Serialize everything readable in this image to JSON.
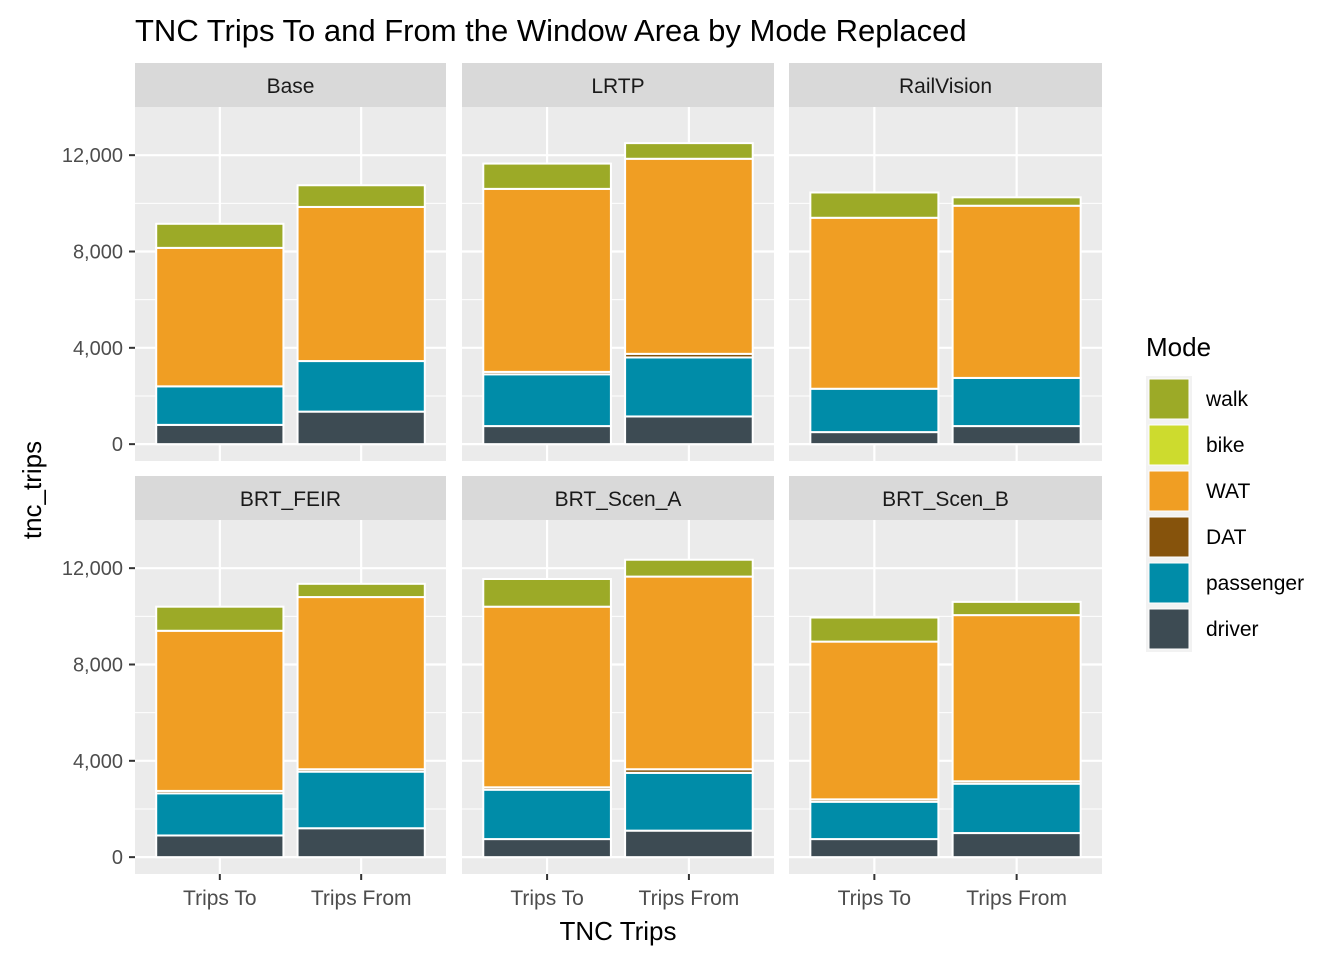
{
  "chart_data": {
    "type": "bar",
    "stacked": true,
    "faceted": true,
    "title": "TNC Trips To and From the Window Area by Mode Replaced",
    "xlabel": "TNC Trips",
    "ylabel": "tnc_trips",
    "ylim": [
      -700,
      14000
    ],
    "yticks": [
      0,
      4000,
      8000,
      12000
    ],
    "ytick_labels": [
      "0",
      "4,000",
      "8,000",
      "12,000"
    ],
    "grid": true,
    "categories": [
      "Trips To",
      "Trips From"
    ],
    "legend": {
      "title": "Mode",
      "placement": "right",
      "entries": [
        {
          "name": "walk",
          "color": "#9CAA27"
        },
        {
          "name": "bike",
          "color": "#CDDB2E"
        },
        {
          "name": "WAT",
          "color": "#F09E23"
        },
        {
          "name": "DAT",
          "color": "#86530C"
        },
        {
          "name": "passenger",
          "color": "#008CA8"
        },
        {
          "name": "driver",
          "color": "#3D4B53"
        }
      ]
    },
    "stack_order": [
      "driver",
      "passenger",
      "DAT",
      "WAT",
      "bike",
      "walk"
    ],
    "panels": [
      {
        "name": "Base",
        "bars": [
          {
            "category": "Trips To",
            "values": {
              "driver": 800,
              "passenger": 1600,
              "DAT": 0,
              "WAT": 5750,
              "bike": 0,
              "walk": 1000
            }
          },
          {
            "category": "Trips From",
            "values": {
              "driver": 1350,
              "passenger": 2100,
              "DAT": 0,
              "WAT": 6400,
              "bike": 0,
              "walk": 900
            }
          }
        ]
      },
      {
        "name": "LRTP",
        "bars": [
          {
            "category": "Trips To",
            "values": {
              "driver": 750,
              "passenger": 2150,
              "DAT": 100,
              "WAT": 7600,
              "bike": 0,
              "walk": 1050
            }
          },
          {
            "category": "Trips From",
            "values": {
              "driver": 1150,
              "passenger": 2450,
              "DAT": 150,
              "WAT": 8100,
              "bike": 0,
              "walk": 650
            }
          }
        ]
      },
      {
        "name": "RailVision",
        "bars": [
          {
            "category": "Trips To",
            "values": {
              "driver": 500,
              "passenger": 1800,
              "DAT": 0,
              "WAT": 7100,
              "bike": 0,
              "walk": 1050
            }
          },
          {
            "category": "Trips From",
            "values": {
              "driver": 750,
              "passenger": 2000,
              "DAT": 0,
              "WAT": 7150,
              "bike": 0,
              "walk": 350
            }
          }
        ]
      },
      {
        "name": "BRT_FEIR",
        "bars": [
          {
            "category": "Trips To",
            "values": {
              "driver": 900,
              "passenger": 1750,
              "DAT": 100,
              "WAT": 6650,
              "bike": 0,
              "walk": 1000
            }
          },
          {
            "category": "Trips From",
            "values": {
              "driver": 1200,
              "passenger": 2350,
              "DAT": 100,
              "WAT": 7150,
              "bike": 0,
              "walk": 550
            }
          }
        ]
      },
      {
        "name": "BRT_Scen_A",
        "bars": [
          {
            "category": "Trips To",
            "values": {
              "driver": 750,
              "passenger": 2050,
              "DAT": 100,
              "WAT": 7500,
              "bike": 0,
              "walk": 1150
            }
          },
          {
            "category": "Trips From",
            "values": {
              "driver": 1100,
              "passenger": 2400,
              "DAT": 150,
              "WAT": 8000,
              "bike": 0,
              "walk": 700
            }
          }
        ]
      },
      {
        "name": "BRT_Scen_B",
        "bars": [
          {
            "category": "Trips To",
            "values": {
              "driver": 750,
              "passenger": 1550,
              "DAT": 100,
              "WAT": 6550,
              "bike": 0,
              "walk": 1000
            }
          },
          {
            "category": "Trips From",
            "values": {
              "driver": 1000,
              "passenger": 2050,
              "DAT": 100,
              "WAT": 6900,
              "bike": 0,
              "walk": 550
            }
          }
        ]
      }
    ]
  }
}
